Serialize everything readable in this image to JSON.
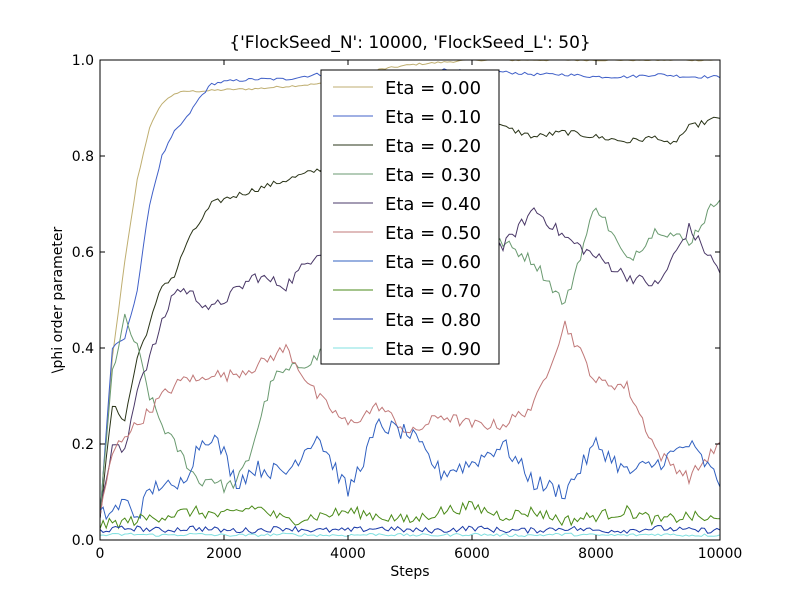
{
  "chart_data": {
    "type": "line",
    "title": "{'FlockSeed_N': 10000, 'FlockSeed_L': 50}",
    "xlabel": "Steps",
    "ylabel": "\\phi order parameter",
    "xlim": [
      0,
      10000
    ],
    "ylim": [
      0.0,
      1.0
    ],
    "xticks": [
      0,
      2000,
      4000,
      6000,
      8000,
      10000
    ],
    "xtick_labels": [
      "0",
      "2000",
      "4000",
      "6000",
      "8000",
      "10000"
    ],
    "yticks": [
      0.0,
      0.2,
      0.4,
      0.6,
      0.8,
      1.0
    ],
    "ytick_labels": [
      "0.0",
      "0.2",
      "0.4",
      "0.6",
      "0.8",
      "1.0"
    ],
    "grid": false,
    "legend_position": "top-center",
    "series": [
      {
        "name": "Eta = 0.00",
        "color": "#bfae70",
        "x": [
          0,
          200,
          400,
          600,
          800,
          1000,
          1200,
          1400,
          1600,
          2000,
          2500,
          3000,
          3500,
          4000,
          4500,
          5000,
          5500,
          6000,
          6500,
          7000,
          7500,
          8000,
          8500,
          9000,
          9500,
          10000
        ],
        "values": [
          0.05,
          0.38,
          0.58,
          0.75,
          0.86,
          0.91,
          0.93,
          0.935,
          0.935,
          0.938,
          0.94,
          0.945,
          0.95,
          0.955,
          0.98,
          0.99,
          0.995,
          1.0,
          1.0,
          1.0,
          1.0,
          1.0,
          1.0,
          1.0,
          1.0,
          1.0
        ]
      },
      {
        "name": "Eta = 0.10",
        "color": "#4060c8",
        "x": [
          0,
          200,
          400,
          600,
          800,
          1000,
          1200,
          1400,
          1600,
          1800,
          2000,
          2500,
          3000,
          3500,
          4000,
          4500,
          5000,
          5500,
          6000,
          6500,
          7000,
          7500,
          8000,
          8500,
          9000,
          9500,
          10000
        ],
        "values": [
          0.05,
          0.4,
          0.42,
          0.52,
          0.7,
          0.8,
          0.85,
          0.88,
          0.92,
          0.95,
          0.955,
          0.96,
          0.96,
          0.97,
          0.965,
          0.975,
          0.975,
          0.98,
          0.975,
          0.975,
          0.97,
          0.97,
          0.965,
          0.965,
          0.97,
          0.965,
          0.965
        ]
      },
      {
        "name": "Eta = 0.20",
        "color": "#2a3418",
        "x": [
          0,
          200,
          400,
          600,
          800,
          1000,
          1200,
          1400,
          1600,
          1800,
          2000,
          2500,
          3000,
          3500,
          4000,
          4500,
          5000,
          5500,
          6000,
          6500,
          7000,
          7500,
          8000,
          8500,
          9000,
          9200,
          9500,
          10000
        ],
        "values": [
          0.05,
          0.28,
          0.25,
          0.38,
          0.45,
          0.53,
          0.55,
          0.62,
          0.66,
          0.7,
          0.71,
          0.73,
          0.75,
          0.77,
          0.8,
          0.86,
          0.92,
          0.93,
          0.91,
          0.86,
          0.84,
          0.85,
          0.84,
          0.83,
          0.84,
          0.82,
          0.86,
          0.88
        ]
      },
      {
        "name": "Eta = 0.30",
        "color": "#6a9a70",
        "x": [
          0,
          200,
          400,
          600,
          800,
          1000,
          1200,
          1400,
          1600,
          1800,
          2000,
          2200,
          2400,
          2600,
          2800,
          3000,
          3500,
          4000,
          4500,
          5000,
          5500,
          6000,
          6500,
          7000,
          7500,
          8000,
          8500,
          9000,
          9500,
          10000
        ],
        "values": [
          0.05,
          0.35,
          0.46,
          0.4,
          0.3,
          0.24,
          0.2,
          0.16,
          0.12,
          0.13,
          0.11,
          0.12,
          0.17,
          0.26,
          0.34,
          0.35,
          0.38,
          0.5,
          0.55,
          0.58,
          0.58,
          0.6,
          0.62,
          0.58,
          0.49,
          0.7,
          0.58,
          0.65,
          0.62,
          0.72
        ]
      },
      {
        "name": "Eta = 0.40",
        "color": "#4a3868",
        "x": [
          0,
          200,
          400,
          600,
          800,
          1000,
          1200,
          1400,
          1600,
          1800,
          2000,
          2500,
          3000,
          3500,
          4000,
          4500,
          5000,
          5500,
          6000,
          6500,
          7000,
          7500,
          8000,
          8500,
          9000,
          9500,
          10000
        ],
        "values": [
          0.05,
          0.2,
          0.18,
          0.32,
          0.38,
          0.45,
          0.52,
          0.52,
          0.5,
          0.48,
          0.5,
          0.55,
          0.53,
          0.6,
          0.61,
          0.62,
          0.63,
          0.65,
          0.62,
          0.61,
          0.69,
          0.63,
          0.59,
          0.55,
          0.53,
          0.65,
          0.56
        ]
      },
      {
        "name": "Eta = 0.50",
        "color": "#c07878",
        "x": [
          0,
          200,
          400,
          600,
          800,
          1000,
          1200,
          1400,
          1600,
          1800,
          2000,
          2500,
          3000,
          3500,
          4000,
          4500,
          5000,
          5500,
          6000,
          6500,
          7000,
          7500,
          8000,
          8500,
          9000,
          9500,
          10000
        ],
        "values": [
          0.05,
          0.18,
          0.22,
          0.24,
          0.27,
          0.3,
          0.32,
          0.34,
          0.33,
          0.35,
          0.34,
          0.36,
          0.4,
          0.3,
          0.24,
          0.28,
          0.22,
          0.26,
          0.24,
          0.24,
          0.28,
          0.45,
          0.33,
          0.32,
          0.18,
          0.13,
          0.2
        ]
      },
      {
        "name": "Eta = 0.60",
        "color": "#3060c0",
        "x": [
          0,
          200,
          400,
          600,
          800,
          1000,
          1200,
          1400,
          1600,
          1800,
          2000,
          2200,
          2500,
          3000,
          3500,
          4000,
          4500,
          5000,
          5500,
          6000,
          6500,
          7000,
          7500,
          8000,
          8500,
          9000,
          9500,
          10000
        ],
        "values": [
          0.05,
          0.06,
          0.08,
          0.05,
          0.1,
          0.12,
          0.1,
          0.14,
          0.2,
          0.22,
          0.18,
          0.12,
          0.15,
          0.14,
          0.22,
          0.1,
          0.24,
          0.22,
          0.14,
          0.16,
          0.2,
          0.12,
          0.1,
          0.2,
          0.14,
          0.16,
          0.2,
          0.12
        ]
      },
      {
        "name": "Eta = 0.70",
        "color": "#4a8a18",
        "x": [
          0,
          500,
          1000,
          1500,
          2000,
          2500,
          3000,
          3500,
          4000,
          4500,
          5000,
          5500,
          6000,
          6500,
          7000,
          7500,
          8000,
          8500,
          9000,
          9500,
          10000
        ],
        "values": [
          0.03,
          0.04,
          0.05,
          0.06,
          0.05,
          0.07,
          0.04,
          0.05,
          0.06,
          0.05,
          0.04,
          0.06,
          0.07,
          0.05,
          0.06,
          0.04,
          0.05,
          0.06,
          0.04,
          0.05,
          0.04
        ]
      },
      {
        "name": "Eta = 0.80",
        "color": "#1a3aa8",
        "x": [
          0,
          500,
          1000,
          1500,
          2000,
          2500,
          3000,
          3500,
          4000,
          4500,
          5000,
          5500,
          6000,
          6500,
          7000,
          7500,
          8000,
          8500,
          9000,
          9500,
          10000
        ],
        "values": [
          0.02,
          0.025,
          0.02,
          0.025,
          0.02,
          0.02,
          0.025,
          0.02,
          0.02,
          0.025,
          0.02,
          0.02,
          0.025,
          0.02,
          0.02,
          0.025,
          0.02,
          0.02,
          0.025,
          0.02,
          0.02
        ]
      },
      {
        "name": "Eta = 0.90",
        "color": "#80e0e0",
        "x": [
          0,
          500,
          1000,
          1500,
          2000,
          2500,
          3000,
          3500,
          4000,
          4500,
          5000,
          5500,
          6000,
          6500,
          7000,
          7500,
          8000,
          8500,
          9000,
          9500,
          10000
        ],
        "values": [
          0.01,
          0.012,
          0.01,
          0.012,
          0.01,
          0.01,
          0.012,
          0.01,
          0.01,
          0.012,
          0.01,
          0.01,
          0.012,
          0.01,
          0.01,
          0.012,
          0.01,
          0.01,
          0.012,
          0.01,
          0.01
        ]
      }
    ]
  }
}
